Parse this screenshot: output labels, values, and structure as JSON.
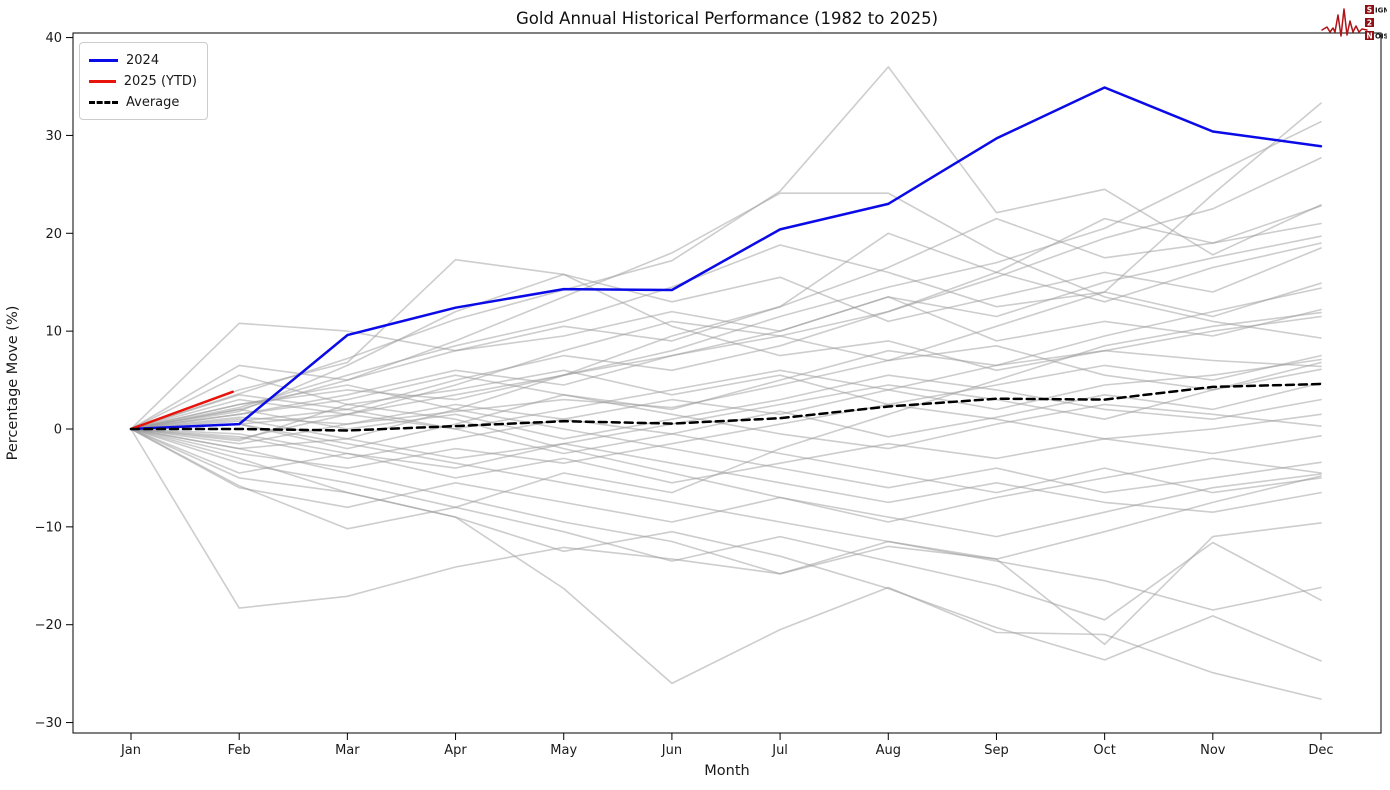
{
  "branding": {
    "rows": [
      {
        "badge": "S",
        "text": "IGNAL"
      },
      {
        "badge": "2",
        "text": ""
      },
      {
        "badge": "N",
        "text": "OISE"
      }
    ],
    "waveform_color": "#b01216",
    "badge_color": "#8f1015",
    "badge_text_color": "#ffffff"
  },
  "chart_data": {
    "type": "line",
    "title": "Gold Annual Historical Performance (1982 to 2025)",
    "xlabel": "Month",
    "ylabel": "Percentage Move (%)",
    "x_tick_labels": [
      "Jan",
      "Feb",
      "Mar",
      "Apr",
      "May",
      "Jun",
      "Jul",
      "Aug",
      "Sep",
      "Oct",
      "Nov",
      "Dec"
    ],
    "y_ticks": [
      40,
      30,
      20,
      10,
      0,
      -10,
      -20,
      -30
    ],
    "ylim": [
      -30,
      40
    ],
    "grid": false,
    "legend_position": "upper-left",
    "legend": [
      {
        "label": "2024",
        "color": "#0b0be8",
        "dash": "solid"
      },
      {
        "label": "2025 (YTD)",
        "color": "#e8130b",
        "dash": "solid"
      },
      {
        "label": "Average",
        "color": "#000000",
        "dash": "dashed"
      }
    ],
    "highlight_series": [
      {
        "name": "2024",
        "color": "#0b0be8",
        "width": 2.5,
        "dashed": false,
        "values": [
          0,
          0.5,
          9.6,
          12.4,
          14.3,
          14.2,
          20.4,
          23.0,
          29.7,
          34.9,
          30.4,
          28.9
        ]
      },
      {
        "name": "2025 (YTD)",
        "color": "#e8130b",
        "width": 2.5,
        "dashed": false,
        "x": [
          0,
          0.94
        ],
        "values": [
          0,
          3.8
        ]
      },
      {
        "name": "Average",
        "color": "#000000",
        "width": 2.5,
        "dashed": true,
        "values": [
          0,
          0.0,
          -0.15,
          0.3,
          0.8,
          0.55,
          1.1,
          2.3,
          3.1,
          3.0,
          4.3,
          4.6
        ]
      }
    ],
    "historical": {
      "description": "Individual years 1982-2023 shown as gray lines",
      "color": "#9c9c9c",
      "opacity": 0.5,
      "width": 1.6,
      "values": [
        [
          0,
          3.6,
          7.2,
          11.2,
          14.2,
          17.2,
          24.3,
          37.0,
          22.1,
          24.5,
          17.8,
          22.9
        ],
        [
          0,
          1.2,
          0.5,
          1.8,
          3.0,
          2.2,
          4.5,
          7.0,
          10.5,
          14.0,
          24.0,
          33.3
        ],
        [
          0,
          2.5,
          4.0,
          3.0,
          5.5,
          8.0,
          11.5,
          14.5,
          17.0,
          20.5,
          26.0,
          31.4
        ],
        [
          0,
          -1.0,
          1.5,
          4.5,
          8.0,
          11.0,
          9.5,
          12.0,
          15.5,
          19.5,
          22.5,
          27.7
        ],
        [
          0,
          0.8,
          2.0,
          5.0,
          7.5,
          6.0,
          8.5,
          12.0,
          16.0,
          21.5,
          19.0,
          22.8
        ],
        [
          0,
          6.5,
          5.0,
          8.0,
          10.5,
          9.0,
          12.5,
          16.5,
          21.5,
          17.5,
          19.0,
          21.0
        ],
        [
          0,
          1.5,
          3.5,
          6.0,
          4.5,
          7.5,
          10.0,
          13.5,
          11.5,
          15.0,
          17.5,
          19.7
        ],
        [
          0,
          -2.0,
          -1.0,
          2.0,
          5.5,
          9.5,
          12.5,
          20.0,
          16.0,
          13.0,
          16.5,
          19.0
        ],
        [
          0,
          4.0,
          6.8,
          17.3,
          15.8,
          13.0,
          15.5,
          11.0,
          13.5,
          16.0,
          14.0,
          18.5
        ],
        [
          0,
          2.2,
          5.5,
          8.5,
          11.0,
          14.5,
          18.8,
          16.0,
          12.5,
          14.0,
          11.5,
          14.9
        ],
        [
          0,
          0.5,
          -2.0,
          0.5,
          3.5,
          2.0,
          5.0,
          8.0,
          6.5,
          9.5,
          12.0,
          14.4
        ],
        [
          0,
          10.8,
          10.0,
          8.0,
          9.5,
          12.0,
          10.0,
          13.5,
          9.0,
          11.0,
          9.5,
          12.2
        ],
        [
          0,
          -3.5,
          -5.5,
          -8.0,
          -4.5,
          -6.5,
          -2.0,
          1.5,
          5.0,
          8.5,
          10.5,
          11.9
        ],
        [
          0,
          1.8,
          6.5,
          12.0,
          15.8,
          10.5,
          7.5,
          9.0,
          6.0,
          8.0,
          10.0,
          11.5
        ],
        [
          0,
          2.0,
          5.0,
          9.0,
          13.5,
          18.0,
          24.1,
          24.1,
          18.0,
          13.5,
          11.0,
          9.3
        ],
        [
          0,
          5.5,
          2.5,
          4.0,
          6.0,
          3.5,
          5.5,
          2.5,
          4.5,
          6.5,
          5.0,
          7.5
        ],
        [
          0,
          -1.5,
          0.5,
          2.5,
          1.0,
          3.0,
          1.5,
          4.0,
          2.0,
          4.5,
          5.5,
          7.1
        ],
        [
          0,
          3.0,
          1.5,
          3.5,
          5.5,
          7.5,
          9.5,
          7.0,
          8.5,
          5.5,
          4.0,
          6.8
        ],
        [
          0,
          0.5,
          1.5,
          0.0,
          2.0,
          4.0,
          6.0,
          4.0,
          6.5,
          8.0,
          7.0,
          6.4
        ],
        [
          0,
          -0.5,
          -2.5,
          -4.0,
          -1.5,
          0.5,
          2.5,
          4.5,
          3.0,
          1.0,
          4.0,
          6.1
        ],
        [
          0,
          -0.8,
          -3.0,
          -1.0,
          1.0,
          -0.5,
          1.8,
          -0.8,
          1.2,
          3.5,
          2.0,
          4.7
        ],
        [
          0,
          2.0,
          0.0,
          1.5,
          -1.0,
          1.0,
          3.0,
          5.5,
          4.0,
          2.0,
          1.0,
          3.0
        ],
        [
          0,
          -2.5,
          -4.0,
          -2.0,
          -3.5,
          -1.5,
          0.5,
          2.5,
          1.0,
          -1.0,
          0.0,
          1.5
        ],
        [
          0,
          1.5,
          3.0,
          5.5,
          3.5,
          1.5,
          -0.5,
          -2.0,
          0.5,
          2.5,
          1.5,
          0.3
        ],
        [
          0,
          -4.5,
          -2.5,
          -5.0,
          -3.0,
          -5.5,
          -3.5,
          -1.5,
          -3.0,
          -1.0,
          -2.5,
          -0.7
        ],
        [
          0,
          2.5,
          4.5,
          2.0,
          0.0,
          -2.0,
          -4.0,
          -6.0,
          -4.0,
          -6.5,
          -5.0,
          -3.4
        ],
        [
          0,
          -1.2,
          2.5,
          1.0,
          -2.0,
          -4.5,
          -7.0,
          -9.5,
          -7.0,
          -5.0,
          -3.0,
          -4.5
        ],
        [
          0,
          -6.0,
          -8.0,
          -5.5,
          -7.5,
          -9.5,
          -7.0,
          -9.0,
          -11.0,
          -8.5,
          -6.0,
          -4.6
        ],
        [
          0,
          0.5,
          -1.5,
          -3.5,
          -5.5,
          -7.5,
          -9.5,
          -11.5,
          -13.3,
          -10.5,
          -7.5,
          -4.8
        ],
        [
          0,
          3.5,
          2.0,
          0.0,
          -2.5,
          -0.5,
          -2.5,
          -4.5,
          -6.5,
          -4.0,
          -6.5,
          -5.0
        ],
        [
          0,
          1.0,
          -1.0,
          -3.0,
          -1.5,
          -3.5,
          -5.5,
          -7.5,
          -5.5,
          -7.5,
          -8.5,
          -6.5
        ],
        [
          0,
          -2.0,
          -4.5,
          -7.0,
          -9.5,
          -11.5,
          -14.8,
          -12.0,
          -13.3,
          -22.0,
          -11.0,
          -9.6
        ],
        [
          0,
          -18.3,
          -17.1,
          -14.1,
          -12.1,
          -13.3,
          -14.8,
          -11.5,
          -13.5,
          -15.5,
          -18.5,
          -16.2
        ],
        [
          0,
          -5.8,
          -10.2,
          -8.0,
          -10.5,
          -13.5,
          -11.0,
          -13.5,
          -16.0,
          -19.5,
          -11.6,
          -17.5
        ],
        [
          0,
          -3.0,
          -6.5,
          -9.0,
          -12.5,
          -10.5,
          -13.0,
          -16.3,
          -20.3,
          -23.6,
          -19.1,
          -23.7
        ],
        [
          0,
          -5.0,
          -6.5,
          -9.0,
          -16.3,
          -26.0,
          -20.5,
          -16.2,
          -20.8,
          -21.0,
          -24.9,
          -27.6
        ]
      ]
    }
  }
}
